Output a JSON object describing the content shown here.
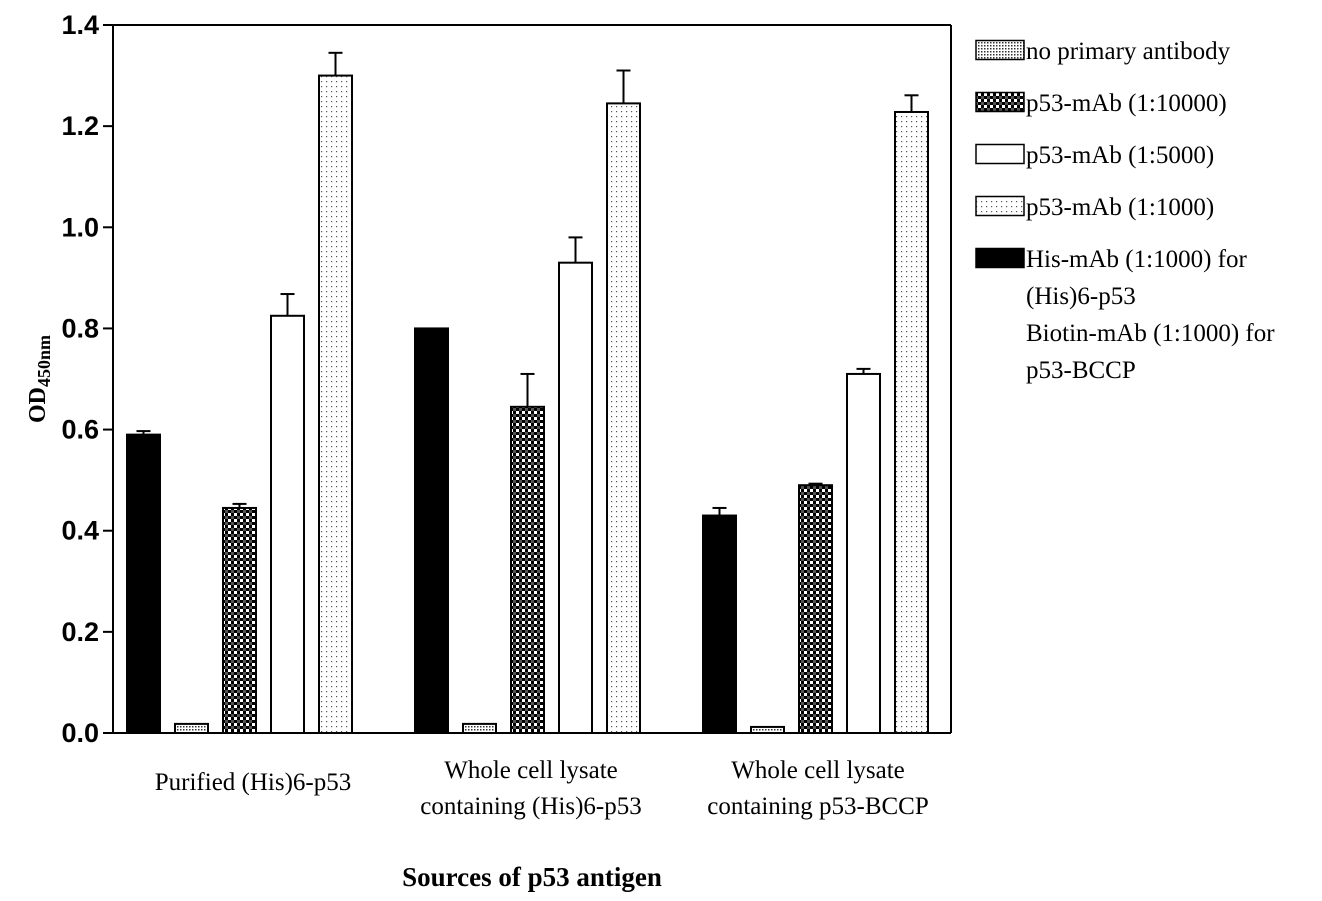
{
  "chart_data": {
    "type": "bar",
    "title": "",
    "xlabel": "Sources of p53 antigen",
    "ylabel": {
      "main": "OD",
      "sub": "450nm"
    },
    "ylim": [
      0,
      1.4
    ],
    "yticks": [
      "0.0",
      "0.2",
      "0.4",
      "0.6",
      "0.8",
      "1.0",
      "1.2",
      "1.4"
    ],
    "grid": false,
    "legend_position": "right",
    "categories": [
      [
        "Purified (His)6-p53"
      ],
      [
        "Whole cell lysate",
        "containing (His)6-p53"
      ],
      [
        "Whole cell lysate",
        "containing p53-BCCP"
      ]
    ],
    "series": [
      {
        "legend": [
          "His-mAb (1:1000) for",
          "(His)6-p53",
          "Biotin-mAb (1:1000) for",
          "p53-BCCP"
        ],
        "pattern": "solid-black",
        "values": [
          0.59,
          0.8,
          0.43
        ],
        "errors": [
          0.007,
          0.0,
          0.015
        ]
      },
      {
        "legend": [
          "no primary antibody"
        ],
        "pattern": "fine-dots",
        "values": [
          0.018,
          0.018,
          0.012
        ],
        "errors": [
          0.0,
          0.0,
          0.0
        ]
      },
      {
        "legend": [
          "p53-mAb (1:10000)"
        ],
        "pattern": "checker",
        "values": [
          0.445,
          0.645,
          0.49
        ],
        "errors": [
          0.008,
          0.065,
          0.003
        ]
      },
      {
        "legend": [
          "p53-mAb (1:5000)"
        ],
        "pattern": "white",
        "values": [
          0.825,
          0.93,
          0.71
        ],
        "errors": [
          0.043,
          0.05,
          0.01
        ]
      },
      {
        "legend": [
          "p53-mAb (1:1000)"
        ],
        "pattern": "sparse-dots",
        "values": [
          1.3,
          1.245,
          1.228
        ],
        "errors": [
          0.045,
          0.065,
          0.033
        ]
      }
    ],
    "legend_order": [
      1,
      2,
      3,
      4,
      0
    ]
  }
}
